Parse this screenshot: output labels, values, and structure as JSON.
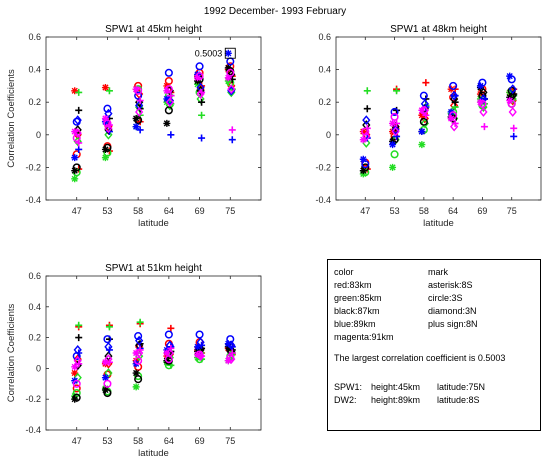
{
  "figure": {
    "supertitle": "1992 December- 1993 February"
  },
  "chart_data": [
    {
      "type": "scatter",
      "title": "SPW1 at 45km height",
      "xlabel": "latitude",
      "ylabel": "Correlation Coefficients",
      "categories": [
        "47",
        "53",
        "58",
        "64",
        "69",
        "75"
      ],
      "ylim": [
        -0.4,
        0.6
      ],
      "yticks": [
        "-0.4",
        "-0.2",
        "0",
        "0.2",
        "0.4",
        "0.6"
      ],
      "annotation": {
        "text": "0.5003",
        "category": "75",
        "value": 0.5003
      },
      "series": [
        {
          "color": "red",
          "values": [
            {
              "mark": "asterisk",
              "values": [
                0.27,
                0.29,
                0.28,
                0.3,
                0.36,
                0.4
              ]
            },
            {
              "mark": "circle",
              "values": [
                -0.12,
                -0.07,
                0.3,
                0.33,
                0.38,
                0.42
              ]
            },
            {
              "mark": "diamond",
              "values": [
                0.0,
                0.05,
                0.25,
                0.21,
                0.28,
                0.3
              ]
            },
            {
              "mark": "plus",
              "values": [
                -0.21,
                -0.1,
                0.08,
                0.26,
                0.3,
                0.36
              ]
            }
          ]
        },
        {
          "color": "green",
          "values": [
            {
              "mark": "asterisk",
              "values": [
                -0.27,
                -0.14,
                0.05,
                0.2,
                0.31,
                0.33
              ]
            },
            {
              "mark": "circle",
              "values": [
                -0.23,
                -0.11,
                0.28,
                0.24,
                0.26,
                0.32
              ]
            },
            {
              "mark": "diamond",
              "values": [
                -0.04,
                0.0,
                0.17,
                0.18,
                0.22,
                0.26
              ]
            },
            {
              "mark": "plus",
              "values": [
                0.26,
                0.27,
                0.12,
                0.19,
                0.12,
                0.28
              ]
            }
          ]
        },
        {
          "color": "black",
          "values": [
            {
              "mark": "asterisk",
              "values": [
                -0.22,
                -0.09,
                0.1,
                0.07,
                0.33,
                0.41
              ]
            },
            {
              "mark": "circle",
              "values": [
                -0.2,
                -0.08,
                0.09,
                0.15,
                0.34,
                0.39
              ]
            },
            {
              "mark": "diamond",
              "values": [
                0.03,
                0.03,
                0.2,
                0.27,
                0.27,
                0.37
              ]
            },
            {
              "mark": "plus",
              "values": [
                0.15,
                0.1,
                0.16,
                0.24,
                0.2,
                0.34
              ]
            }
          ]
        },
        {
          "color": "blue",
          "values": [
            {
              "mark": "asterisk",
              "values": [
                -0.14,
                0.08,
                0.05,
                0.22,
                0.37,
                0.5
              ]
            },
            {
              "mark": "circle",
              "values": [
                0.08,
                0.16,
                0.24,
                0.38,
                0.42,
                0.45
              ]
            },
            {
              "mark": "diamond",
              "values": [
                0.09,
                0.13,
                0.18,
                0.21,
                0.29,
                0.27
              ]
            },
            {
              "mark": "plus",
              "values": [
                -0.09,
                0.02,
                0.03,
                0.0,
                -0.02,
                -0.03
              ]
            }
          ]
        },
        {
          "color": "magenta",
          "values": [
            {
              "mark": "asterisk",
              "values": [
                0.02,
                0.1,
                0.28,
                0.27,
                0.35,
                0.35
              ]
            },
            {
              "mark": "circle",
              "values": [
                -0.02,
                0.07,
                0.27,
                0.28,
                0.36,
                0.38
              ]
            },
            {
              "mark": "diamond",
              "values": [
                0.01,
                0.04,
                0.14,
                0.2,
                0.25,
                0.28
              ]
            },
            {
              "mark": "plus",
              "values": [
                -0.05,
                0.06,
                0.21,
                0.24,
                0.26,
                0.03
              ]
            }
          ]
        }
      ]
    },
    {
      "type": "scatter",
      "title": "SPW1 at 48km height",
      "xlabel": "latitude",
      "ylabel": "",
      "categories": [
        "47",
        "53",
        "58",
        "64",
        "69",
        "75"
      ],
      "ylim": [
        -0.4,
        0.6
      ],
      "yticks": [
        "-0.4",
        "-0.2",
        "0",
        "0.2",
        "0.4",
        "0.6"
      ],
      "series": [
        {
          "color": "red",
          "values": [
            {
              "mark": "asterisk",
              "values": [
                0.02,
                0.02,
                0.12,
                0.28,
                0.25,
                0.26
              ]
            },
            {
              "mark": "circle",
              "values": [
                -0.17,
                -0.01,
                0.13,
                0.23,
                0.28,
                0.25
              ]
            },
            {
              "mark": "diamond",
              "values": [
                0.0,
                0.04,
                0.1,
                0.18,
                0.22,
                0.21
              ]
            },
            {
              "mark": "plus",
              "values": [
                -0.21,
                0.28,
                0.32,
                0.28,
                0.22,
                0.28
              ]
            }
          ]
        },
        {
          "color": "green",
          "values": [
            {
              "mark": "asterisk",
              "values": [
                -0.24,
                -0.2,
                -0.06,
                0.13,
                0.22,
                0.26
              ]
            },
            {
              "mark": "circle",
              "values": [
                -0.23,
                -0.12,
                0.03,
                0.14,
                0.18,
                0.19
              ]
            },
            {
              "mark": "diamond",
              "values": [
                -0.05,
                -0.03,
                0.07,
                0.1,
                0.17,
                0.22
              ]
            },
            {
              "mark": "plus",
              "values": [
                0.27,
                0.27,
                0.18,
                0.17,
                0.19,
                0.24
              ]
            }
          ]
        },
        {
          "color": "black",
          "values": [
            {
              "mark": "asterisk",
              "values": [
                -0.22,
                -0.04,
                0.02,
                0.11,
                0.29,
                0.23
              ]
            },
            {
              "mark": "circle",
              "values": [
                -0.2,
                -0.03,
                0.08,
                0.1,
                0.24,
                0.27
              ]
            },
            {
              "mark": "diamond",
              "values": [
                0.06,
                0.05,
                0.16,
                0.22,
                0.26,
                0.24
              ]
            },
            {
              "mark": "plus",
              "values": [
                0.16,
                0.15,
                0.22,
                0.2,
                0.22,
                0.25
              ]
            }
          ]
        },
        {
          "color": "blue",
          "values": [
            {
              "mark": "asterisk",
              "values": [
                -0.15,
                -0.06,
                0.02,
                0.14,
                0.3,
                0.36
              ]
            },
            {
              "mark": "circle",
              "values": [
                -0.18,
                0.14,
                0.24,
                0.3,
                0.32,
                0.34
              ]
            },
            {
              "mark": "diamond",
              "values": [
                0.09,
                0.03,
                0.19,
                0.24,
                0.22,
                0.28
              ]
            },
            {
              "mark": "plus",
              "values": [
                -0.02,
                -0.01,
                0.17,
                0.24,
                0.22,
                -0.01
              ]
            }
          ]
        },
        {
          "color": "magenta",
          "values": [
            {
              "mark": "asterisk",
              "values": [
                -0.03,
                0.07,
                0.15,
                0.1,
                0.2,
                0.21
              ]
            },
            {
              "mark": "circle",
              "values": [
                0.02,
                0.11,
                0.15,
                0.12,
                0.19,
                0.19
              ]
            },
            {
              "mark": "diamond",
              "values": [
                -0.01,
                0.02,
                0.15,
                0.05,
                0.14,
                0.14
              ]
            },
            {
              "mark": "plus",
              "values": [
                0.04,
                0.07,
                0.12,
                0.07,
                0.05,
                0.04
              ]
            }
          ]
        }
      ]
    },
    {
      "type": "scatter",
      "title": "SPW1 at 51km height",
      "xlabel": "latitude",
      "ylabel": "Correlation Coefficients",
      "categories": [
        "47",
        "53",
        "58",
        "64",
        "69",
        "75"
      ],
      "ylim": [
        -0.4,
        0.6
      ],
      "yticks": [
        "-0.4",
        "-0.2",
        "0",
        "0.2",
        "0.4",
        "0.6"
      ],
      "series": [
        {
          "color": "red",
          "values": [
            {
              "mark": "asterisk",
              "values": [
                -0.03,
                0.03,
                0.05,
                0.08,
                0.12,
                0.13
              ]
            },
            {
              "mark": "circle",
              "values": [
                -0.13,
                -0.04,
                0.01,
                0.16,
                0.17,
                0.15
              ]
            },
            {
              "mark": "diamond",
              "values": [
                0.06,
                0.03,
                0.14,
                0.09,
                0.1,
                0.09
              ]
            },
            {
              "mark": "plus",
              "values": [
                0.27,
                0.28,
                0.29,
                0.26,
                0.1,
                0.09
              ]
            }
          ]
        },
        {
          "color": "green",
          "values": [
            {
              "mark": "asterisk",
              "values": [
                -0.18,
                -0.13,
                -0.12,
                0.04,
                0.07,
                0.05
              ]
            },
            {
              "mark": "circle",
              "values": [
                -0.16,
                -0.15,
                -0.05,
                0.02,
                0.06,
                0.08
              ]
            },
            {
              "mark": "diamond",
              "values": [
                -0.06,
                -0.03,
                0.08,
                0.07,
                0.1,
                0.09
              ]
            },
            {
              "mark": "plus",
              "values": [
                0.28,
                0.27,
                0.3,
                0.02,
                0.06,
                0.1
              ]
            }
          ]
        },
        {
          "color": "black",
          "values": [
            {
              "mark": "asterisk",
              "values": [
                -0.2,
                -0.14,
                -0.03,
                0.05,
                0.11,
                0.14
              ]
            },
            {
              "mark": "circle",
              "values": [
                -0.19,
                -0.16,
                -0.07,
                0.05,
                0.13,
                0.12
              ]
            },
            {
              "mark": "diamond",
              "values": [
                0.02,
                0.08,
                0.15,
                0.1,
                0.12,
                0.11
              ]
            },
            {
              "mark": "plus",
              "values": [
                0.2,
                0.19,
                0.16,
                0.11,
                0.13,
                0.12
              ]
            }
          ]
        },
        {
          "color": "blue",
          "values": [
            {
              "mark": "asterisk",
              "values": [
                -0.08,
                -0.06,
                0.03,
                0.12,
                0.14,
                0.16
              ]
            },
            {
              "mark": "circle",
              "values": [
                0.08,
                0.19,
                0.21,
                0.22,
                0.22,
                0.19
              ]
            },
            {
              "mark": "diamond",
              "values": [
                0.12,
                0.14,
                0.18,
                0.15,
                0.17,
                0.15
              ]
            },
            {
              "mark": "plus",
              "values": [
                0.1,
                0.12,
                0.13,
                0.14,
                0.15,
                0.14
              ]
            }
          ]
        },
        {
          "color": "magenta",
          "values": [
            {
              "mark": "asterisk",
              "values": [
                0.01,
                0.04,
                0.1,
                0.1,
                0.09,
                0.05
              ]
            },
            {
              "mark": "circle",
              "values": [
                -0.1,
                -0.1,
                0.05,
                0.06,
                0.09,
                0.07
              ]
            },
            {
              "mark": "diamond",
              "values": [
                0.05,
                0.06,
                0.1,
                0.1,
                0.08,
                0.06
              ]
            },
            {
              "mark": "plus",
              "values": [
                0.03,
                0.04,
                0.12,
                0.13,
                0.08,
                0.1
              ]
            }
          ]
        }
      ]
    }
  ],
  "colors": {
    "red": "#ff0000",
    "green": "#22dd22",
    "black": "#000000",
    "blue": "#0000ff",
    "magenta": "#ff00ff",
    "axis": "#262626"
  },
  "legend": {
    "color_header": "color",
    "mark_header": "mark",
    "color_rows": [
      "red:83km",
      "green:85km",
      "black:87km",
      "blue:89km",
      "magenta:91km"
    ],
    "mark_rows": [
      "asterisk:8S",
      "circle:3S",
      "diamond:3N",
      "plus sign:8N"
    ],
    "largest_note": "The largest correlation coefficient is 0.5003",
    "spw_line_label": "SPW1:",
    "spw_line_height": "height:45km",
    "spw_line_lat": "latitude:75N",
    "dw_line_label": "DW2:",
    "dw_line_height": "height:89km",
    "dw_line_lat": "latitude:8S"
  }
}
